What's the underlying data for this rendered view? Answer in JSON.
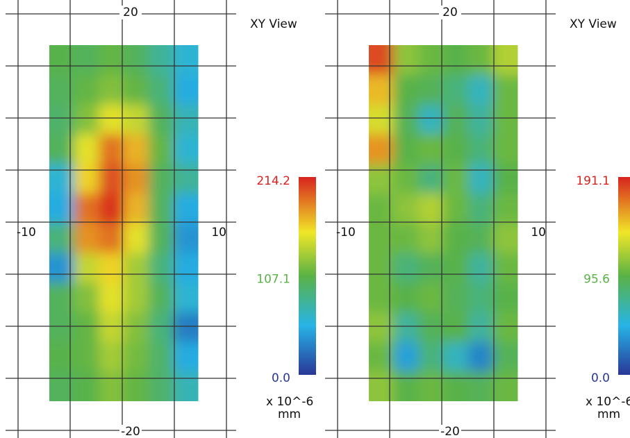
{
  "chart_data": [
    {
      "type": "heatmap",
      "title": "XY View",
      "xlim": [
        -10,
        10
      ],
      "ylim": [
        -20,
        20
      ],
      "xticks": [
        -10,
        10
      ],
      "yticks": [
        -20,
        20
      ],
      "grid": true,
      "grid_spacing": 5,
      "x_range": [
        -7,
        7.3
      ],
      "y_range": [
        -17.2,
        17
      ],
      "z": [
        [
          105,
          100,
          110,
          100,
          80,
          60
        ],
        [
          100,
          110,
          120,
          110,
          90,
          50
        ],
        [
          95,
          120,
          150,
          140,
          100,
          70
        ],
        [
          100,
          150,
          190,
          170,
          110,
          60
        ],
        [
          60,
          160,
          200,
          180,
          100,
          80
        ],
        [
          50,
          190,
          210,
          170,
          100,
          50
        ],
        [
          90,
          180,
          190,
          150,
          100,
          40
        ],
        [
          40,
          140,
          160,
          130,
          90,
          50
        ],
        [
          100,
          120,
          150,
          130,
          100,
          60
        ],
        [
          100,
          110,
          140,
          120,
          90,
          30
        ],
        [
          105,
          110,
          130,
          115,
          95,
          50
        ],
        [
          100,
          105,
          120,
          110,
          95,
          70
        ]
      ],
      "zlim": [
        0,
        214.2
      ],
      "zticks": [
        {
          "value": 0,
          "label": "0.0"
        },
        {
          "value": 107.1,
          "label": "107.1"
        },
        {
          "value": 214.2,
          "label": "214.2"
        }
      ],
      "colorbar_label": "x 10^-6",
      "colorbar_unit": "mm"
    },
    {
      "type": "heatmap",
      "title": "XY View",
      "xlim": [
        -10,
        10
      ],
      "ylim": [
        -20,
        20
      ],
      "xticks": [
        -10,
        10
      ],
      "yticks": [
        -20,
        20
      ],
      "grid": true,
      "grid_spacing": 5,
      "x_range": [
        -7,
        7.3
      ],
      "y_range": [
        -17.2,
        17
      ],
      "z": [
        [
          180,
          110,
          100,
          95,
          100,
          120
        ],
        [
          150,
          95,
          90,
          80,
          60,
          100
        ],
        [
          130,
          90,
          60,
          90,
          70,
          100
        ],
        [
          160,
          95,
          100,
          95,
          80,
          100
        ],
        [
          110,
          100,
          80,
          100,
          60,
          95
        ],
        [
          100,
          110,
          120,
          100,
          80,
          100
        ],
        [
          100,
          100,
          110,
          95,
          90,
          110
        ],
        [
          100,
          80,
          90,
          95,
          70,
          100
        ],
        [
          100,
          95,
          100,
          90,
          80,
          95
        ],
        [
          110,
          70,
          90,
          95,
          70,
          100
        ],
        [
          100,
          40,
          80,
          60,
          30,
          90
        ],
        [
          110,
          95,
          100,
          95,
          90,
          100
        ]
      ],
      "zlim": [
        0,
        191.1
      ],
      "zticks": [
        {
          "value": 0,
          "label": "0.0"
        },
        {
          "value": 95.6,
          "label": "95.6"
        },
        {
          "value": 191.1,
          "label": "191.1"
        }
      ],
      "colorbar_label": "x 10^-6",
      "colorbar_unit": "mm"
    }
  ]
}
